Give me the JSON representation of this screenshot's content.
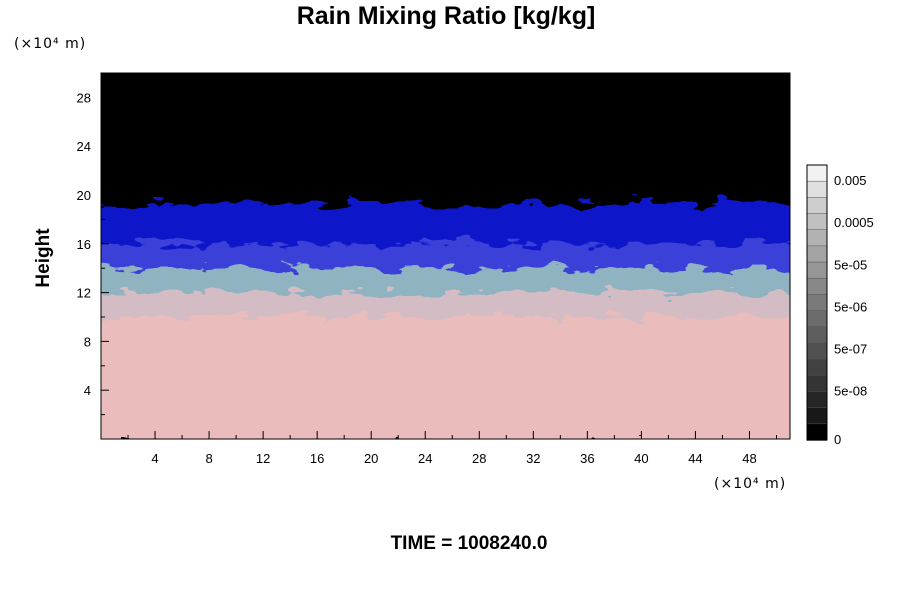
{
  "chart_data": {
    "type": "heatmap",
    "title": "Rain Mixing Ratio [kg/kg]",
    "xlabel": "",
    "ylabel": "Height",
    "x_unit": "(×10⁴ m)",
    "y_unit": "(×10⁴ m)",
    "xlim": [
      0,
      51
    ],
    "ylim": [
      0,
      30
    ],
    "x_ticks": [
      4,
      8,
      12,
      16,
      20,
      24,
      28,
      32,
      36,
      40,
      44,
      48
    ],
    "y_ticks": [
      4,
      8,
      12,
      16,
      20,
      24,
      28
    ],
    "time_label": "TIME = 1008240.0",
    "bands": [
      {
        "from": 0,
        "to": 10.5,
        "color": "#ebbcbc"
      },
      {
        "from": 10.5,
        "to": 12.5,
        "color": "#d4bcc4"
      },
      {
        "from": 12.5,
        "to": 14.5,
        "color": "#8fb3c0"
      },
      {
        "from": 14.5,
        "to": 16.5,
        "color": "#3a40d8"
      },
      {
        "from": 16.5,
        "to": 19.8,
        "color": "#0a14c8"
      },
      {
        "from": 19.8,
        "to": 30,
        "color": "#000000"
      }
    ],
    "colorbar": {
      "labels": [
        "0.005",
        "0.0005",
        "5e-05",
        "5e-06",
        "5e-07",
        "5e-08",
        "0"
      ],
      "colors_top_to_bottom": [
        "#f2f2f2",
        "#e0e0e0",
        "#cecece",
        "#c0c0c0",
        "#b2b2b2",
        "#a4a4a4",
        "#969696",
        "#888888",
        "#7a7a7a",
        "#6c6c6c",
        "#5e5e5e",
        "#505050",
        "#424242",
        "#343434",
        "#262626",
        "#181818",
        "#000000"
      ]
    }
  }
}
